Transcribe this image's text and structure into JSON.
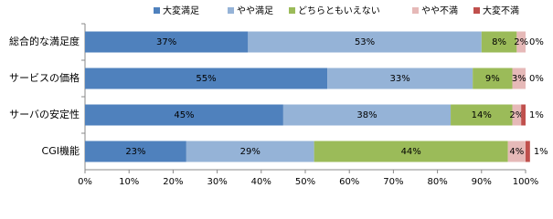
{
  "chart_data": {
    "type": "stacked-bar-horizontal",
    "categories": [
      "総合的な満足度",
      "サービスの価格",
      "サーバの安定性",
      "CGI機能"
    ],
    "series": [
      {
        "name": "大変満足",
        "color": "#4f81bd",
        "values": [
          37,
          55,
          45,
          23
        ],
        "value_labels": [
          "37%",
          "55%",
          "45%",
          "23%"
        ]
      },
      {
        "name": "やや満足",
        "color": "#95b3d7",
        "values": [
          53,
          33,
          38,
          29
        ],
        "value_labels": [
          "53%",
          "33%",
          "38%",
          "29%"
        ]
      },
      {
        "name": "どちらともいえない",
        "color": "#9bbb59",
        "values": [
          8,
          9,
          14,
          44
        ],
        "value_labels": [
          "8%",
          "9%",
          "14%",
          "44%"
        ]
      },
      {
        "name": "やや不満",
        "color": "#e6b9b8",
        "values": [
          2,
          3,
          2,
          4
        ],
        "value_labels": [
          "2%",
          "3%",
          "2%",
          "4%"
        ]
      },
      {
        "name": "大変不満",
        "color": "#c0504d",
        "values": [
          0,
          0,
          1,
          1
        ],
        "value_labels": [
          "0%",
          "0%",
          "1%",
          "1%"
        ]
      }
    ],
    "xlim": [
      0,
      100
    ],
    "xticks": [
      {
        "value": 0,
        "label": "0%"
      },
      {
        "value": 10,
        "label": "10%"
      },
      {
        "value": 20,
        "label": "20%"
      },
      {
        "value": 30,
        "label": "30%"
      },
      {
        "value": 40,
        "label": "40%"
      },
      {
        "value": 50,
        "label": "50%"
      },
      {
        "value": 60,
        "label": "60%"
      },
      {
        "value": 70,
        "label": "70%"
      },
      {
        "value": 80,
        "label": "80%"
      },
      {
        "value": 90,
        "label": "90%"
      },
      {
        "value": 100,
        "label": "100%"
      }
    ],
    "legend": "top"
  }
}
